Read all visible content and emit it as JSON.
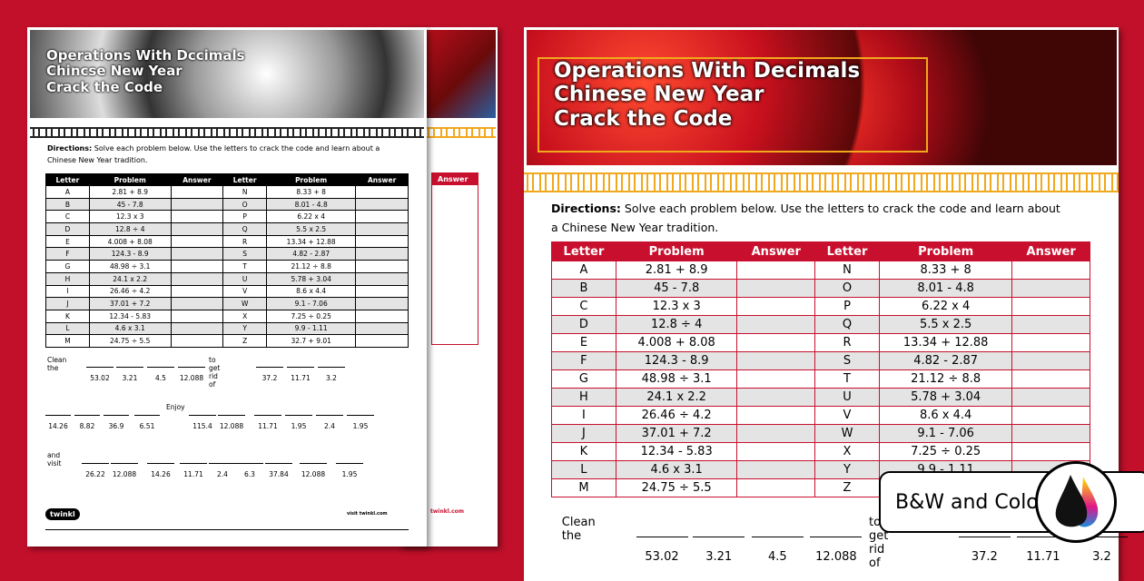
{
  "title_lines": [
    "Operations With Decimals",
    "Chinese New Year",
    "Crack the Code"
  ],
  "left_title_lines": [
    "Operations With Dccimals",
    "Chincse New Year",
    "Crack the Code"
  ],
  "directions_label": "Directions:",
  "directions_text": "Solve each problem below. Use the letters to crack the code and learn about a Chinese New Year tradition.",
  "table_headers": [
    "Letter",
    "Problem",
    "Answer",
    "Letter",
    "Problem",
    "Answer"
  ],
  "rows": [
    [
      "A",
      "2.81 + 8.9",
      "N",
      "8.33 + 8"
    ],
    [
      "B",
      "45 - 7.8",
      "O",
      "8.01 - 4.8"
    ],
    [
      "C",
      "12.3 x 3",
      "P",
      "6.22 x 4"
    ],
    [
      "D",
      "12.8 ÷ 4",
      "Q",
      "5.5 x 2.5"
    ],
    [
      "E",
      "4.008 + 8.08",
      "R",
      "13.34 + 12.88"
    ],
    [
      "F",
      "124.3 - 8.9",
      "S",
      "4.82 - 2.87"
    ],
    [
      "G",
      "48.98 ÷ 3.1",
      "T",
      "21.12 ÷ 8.8"
    ],
    [
      "H",
      "24.1 x 2.2",
      "U",
      "5.78 + 3.04"
    ],
    [
      "I",
      "26.46 ÷ 4.2",
      "V",
      "8.6 x 4.4"
    ],
    [
      "J",
      "37.01 + 7.2",
      "W",
      "9.1 - 7.06"
    ],
    [
      "K",
      "12.34 - 5.83",
      "X",
      "7.25 ÷ 0.25"
    ],
    [
      "L",
      "4.6 x 3.1",
      "Y",
      "9.9 - 1.11"
    ],
    [
      "M",
      "24.75 ÷ 5.5",
      "Z",
      "32.7 + 9.01"
    ]
  ],
  "code": {
    "clean_the": "Clean the",
    "to_get_rid_of": "to get rid of",
    "enjoy": "Enjoy",
    "and_visit": "and visit",
    "group1": [
      "53.02",
      "3.21",
      "4.5",
      "12.088"
    ],
    "group2": [
      "37.2",
      "11.71",
      "3.2"
    ],
    "group3": [
      "14.26",
      "8.82",
      "36.9",
      "6.51"
    ],
    "group4": [
      "115.4",
      "12.088",
      "11.71",
      "1.95",
      "2.4",
      "1.95"
    ],
    "group5": [
      "26.22",
      "12.088",
      "14.26",
      "11.71",
      "2.4",
      "6.3",
      "37.84",
      "12.088",
      "1.95"
    ]
  },
  "footer": {
    "brand": "twinkl",
    "url": "visit twinkl.com",
    "back_url": "twinkl.com"
  },
  "back_header": "Answer",
  "badge": {
    "label": "B&W and Color",
    "icon": "ink-drops-icon"
  },
  "colors": {
    "background": "#c2102a",
    "accent": "#c8102e",
    "pattern": "#f0a81c"
  }
}
